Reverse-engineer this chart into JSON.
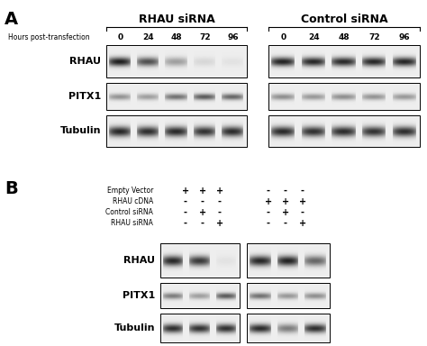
{
  "fig_width": 4.74,
  "fig_height": 3.84,
  "bg_color": "#ffffff",
  "panel_A": {
    "label": "A",
    "left_title": "RHAU siRNA",
    "right_title": "Control siRNA",
    "hours_label": "Hours post-transfection",
    "time_points": [
      "0",
      "24",
      "48",
      "72",
      "96"
    ],
    "row_labels": [
      "RHAU",
      "PITX1",
      "Tubulin"
    ],
    "left_blots": {
      "RHAU": {
        "bands": [
          0.92,
          0.7,
          0.35,
          0.1,
          0.05
        ]
      },
      "PITX1": {
        "bands": [
          0.4,
          0.35,
          0.55,
          0.65,
          0.6
        ]
      },
      "Tubulin": {
        "bands": [
          0.88,
          0.85,
          0.87,
          0.83,
          0.86
        ]
      }
    },
    "right_blots": {
      "RHAU": {
        "bands": [
          0.9,
          0.88,
          0.87,
          0.88,
          0.89
        ]
      },
      "PITX1": {
        "bands": [
          0.42,
          0.38,
          0.42,
          0.4,
          0.38
        ]
      },
      "Tubulin": {
        "bands": [
          0.87,
          0.84,
          0.86,
          0.83,
          0.85
        ]
      }
    }
  },
  "panel_B": {
    "label": "B",
    "row_labels": [
      "Empty Vector",
      "RHAU cDNA",
      "Control siRNA",
      "RHAU siRNA"
    ],
    "left_signs": [
      [
        "+",
        "+",
        "+"
      ],
      [
        "-",
        "-",
        "-"
      ],
      [
        "-",
        "+",
        "-"
      ],
      [
        "-",
        "-",
        "+"
      ]
    ],
    "right_signs": [
      [
        "-",
        "-",
        "-"
      ],
      [
        "+",
        "+",
        "+"
      ],
      [
        "-",
        "+",
        "-"
      ],
      [
        "-",
        "-",
        "+"
      ]
    ],
    "blot_labels": [
      "RHAU",
      "PITX1",
      "Tubulin"
    ],
    "left_blots": {
      "RHAU": {
        "bands": [
          0.88,
          0.8,
          0.05
        ]
      },
      "PITX1": {
        "bands": [
          0.5,
          0.35,
          0.65
        ]
      },
      "Tubulin": {
        "bands": [
          0.85,
          0.83,
          0.84
        ]
      }
    },
    "right_blots": {
      "RHAU": {
        "bands": [
          0.88,
          0.9,
          0.6
        ]
      },
      "PITX1": {
        "bands": [
          0.55,
          0.38,
          0.42
        ]
      },
      "Tubulin": {
        "bands": [
          0.86,
          0.5,
          0.85
        ]
      }
    }
  }
}
